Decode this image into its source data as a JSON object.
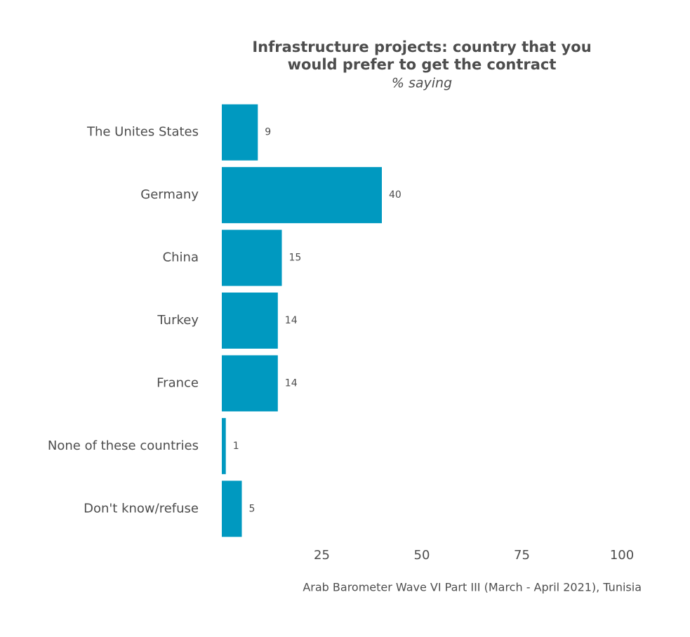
{
  "chart_data": {
    "type": "bar",
    "orientation": "horizontal",
    "title": [
      "Infrastructure projects: country that you",
      "would prefer to get the contract"
    ],
    "subtitle": "% saying",
    "caption": "Arab Barometer Wave VI Part III (March - April 2021), Tunisia",
    "categories": [
      "The Unites States",
      "Germany",
      "China",
      "Turkey",
      "France",
      "None of these countries",
      "Don't know/refuse"
    ],
    "values": [
      9,
      40,
      15,
      14,
      14,
      1,
      5
    ],
    "color": "#0099c0",
    "xlim": [
      0,
      100
    ],
    "xticks": [
      25,
      50,
      75,
      100
    ],
    "grid": false
  }
}
